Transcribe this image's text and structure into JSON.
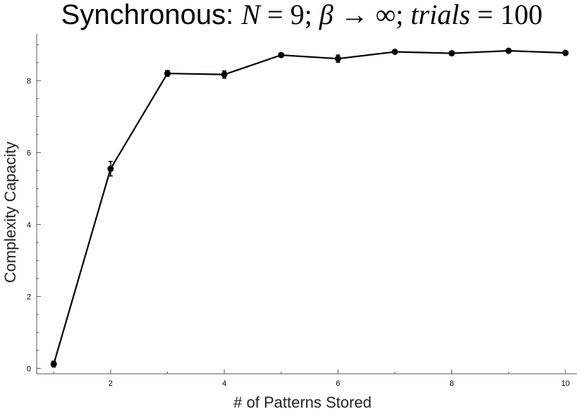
{
  "chart_data": {
    "type": "line",
    "title": {
      "prefix": "Synchronous: ",
      "n_symbol": "N",
      "n_value": "9",
      "beta_symbol": "β",
      "beta_value": "∞",
      "trials_symbol": "trials",
      "trials_value": "100"
    },
    "xlabel": "# of Patterns Stored",
    "ylabel": "Complexity Capacity",
    "xlim": [
      0.7,
      10.2
    ],
    "ylim": [
      -0.15,
      9.3
    ],
    "xticks_major": [
      2,
      4,
      6,
      8,
      10
    ],
    "xticks_minor": [
      1,
      3,
      5,
      7,
      9
    ],
    "yticks_major": [
      0,
      2,
      4,
      6,
      8
    ],
    "grid": false,
    "series": [
      {
        "x": [
          1,
          2,
          3,
          4,
          5,
          6,
          7,
          8,
          9,
          10
        ],
        "y": [
          0.12,
          5.55,
          8.2,
          8.17,
          8.71,
          8.61,
          8.8,
          8.76,
          8.83,
          8.77
        ],
        "err": [
          0.08,
          0.2,
          0.08,
          0.1,
          0.05,
          0.1,
          0.04,
          0.04,
          0.04,
          0.04
        ]
      }
    ]
  }
}
